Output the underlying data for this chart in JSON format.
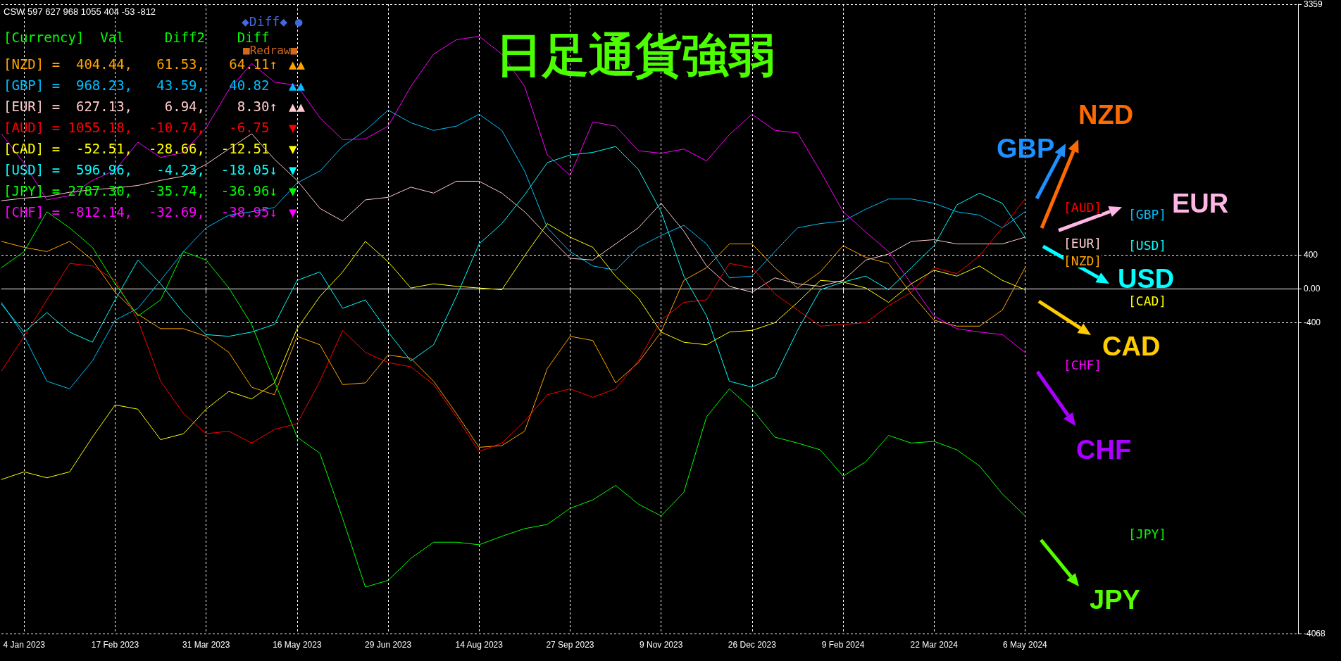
{
  "chart_data": {
    "type": "line",
    "title": "日足通貨強弱",
    "categories": [
      null,
      "4 Jan 2023",
      null,
      null,
      null,
      "17 Feb 2023",
      null,
      null,
      null,
      "31 Mar 2023",
      null,
      null,
      null,
      "16 May 2023",
      null,
      null,
      null,
      "29 Jun 2023",
      null,
      null,
      null,
      "14 Aug 2023",
      null,
      null,
      null,
      "27 Sep 2023",
      null,
      null,
      null,
      "9 Nov 2023",
      null,
      null,
      null,
      "26 Dec 2023",
      null,
      null,
      null,
      "9 Feb 2024",
      null,
      null,
      null,
      "22 Mar 2024",
      null,
      null,
      null,
      "6 May 2024",
      null,
      null,
      null,
      null,
      null,
      null,
      null,
      null,
      null,
      null,
      null,
      null
    ],
    "series": [
      {
        "color": "#ffa500",
        "values": [
          560,
          490,
          440,
          560,
          340,
          -40,
          -300,
          -470,
          -470,
          -560,
          -750,
          -1160,
          -1250,
          -560,
          -660,
          -1130,
          -1110,
          -780,
          -820,
          -1090,
          -1470,
          -1870,
          -1850,
          -1680,
          -940,
          -560,
          -610,
          -1110,
          -870,
          -510,
          100,
          250,
          530,
          530,
          250,
          10,
          200,
          510,
          370,
          300,
          -60,
          -370,
          -440,
          -440,
          -250,
          250,
          null,
          null,
          null,
          null,
          null,
          null,
          null,
          null,
          null,
          null,
          null,
          null
        ]
      },
      {
        "color": "#00bfff",
        "values": [
          -160,
          -560,
          -1090,
          -1180,
          -850,
          -370,
          -230,
          100,
          440,
          720,
          870,
          910,
          960,
          1250,
          1390,
          1680,
          1870,
          2110,
          1960,
          1870,
          1920,
          2060,
          1870,
          1390,
          720,
          440,
          270,
          220,
          490,
          630,
          750,
          530,
          130,
          150,
          440,
          720,
          770,
          800,
          940,
          1060,
          1060,
          1010,
          910,
          870,
          720,
          910,
          null,
          null,
          null,
          null,
          null,
          null,
          null,
          null,
          null,
          null,
          null,
          null
        ]
      },
      {
        "color": "#ffcccc",
        "values": [
          1040,
          1070,
          1090,
          1140,
          1170,
          1190,
          1220,
          1280,
          1330,
          1470,
          1650,
          1830,
          1530,
          1280,
          950,
          800,
          1050,
          1080,
          1200,
          1130,
          1270,
          1270,
          1130,
          910,
          630,
          360,
          340,
          530,
          720,
          1010,
          680,
          270,
          30,
          -40,
          130,
          60,
          30,
          100,
          340,
          410,
          560,
          580,
          530,
          530,
          530,
          610,
          null,
          null,
          null,
          null,
          null,
          null,
          null,
          null,
          null,
          null,
          null,
          null
        ]
      },
      {
        "color": "#ff0000",
        "values": [
          -970,
          -560,
          -130,
          300,
          270,
          100,
          -370,
          -1090,
          -1470,
          -1710,
          -1680,
          -1820,
          -1660,
          -1590,
          -1090,
          -490,
          -750,
          -870,
          -920,
          -1130,
          -1510,
          -1920,
          -1820,
          -1560,
          -1250,
          -1180,
          -1280,
          -1180,
          -850,
          -370,
          -160,
          -130,
          300,
          250,
          -60,
          -250,
          -440,
          -420,
          -400,
          -200,
          -40,
          250,
          180,
          390,
          720,
          1060,
          null,
          null,
          null,
          null,
          null,
          null,
          null,
          null,
          null,
          null,
          null,
          null
        ]
      },
      {
        "color": "#ffff00",
        "values": [
          -2250,
          -2160,
          -2230,
          -2160,
          -1750,
          -1370,
          -1420,
          -1780,
          -1710,
          -1420,
          -1210,
          -1300,
          -1110,
          -470,
          -90,
          200,
          560,
          320,
          10,
          60,
          30,
          10,
          -10,
          390,
          770,
          610,
          490,
          150,
          -110,
          -510,
          -630,
          -660,
          -510,
          -490,
          -400,
          -160,
          100,
          80,
          10,
          -160,
          60,
          220,
          150,
          270,
          100,
          -10,
          null,
          null,
          null,
          null,
          null,
          null,
          null,
          null,
          null,
          null,
          null,
          null
        ]
      },
      {
        "color": "#00ffff",
        "values": [
          -180,
          -510,
          -280,
          -510,
          -630,
          -130,
          340,
          60,
          -280,
          -540,
          -560,
          -510,
          -420,
          100,
          200,
          -230,
          -130,
          -510,
          -850,
          -660,
          -90,
          530,
          770,
          1110,
          1490,
          1580,
          1610,
          1680,
          1410,
          910,
          150,
          -320,
          -1090,
          -1160,
          -1040,
          -490,
          -10,
          80,
          150,
          -10,
          250,
          510,
          990,
          1130,
          1010,
          610,
          null,
          null,
          null,
          null,
          null,
          null,
          null,
          null,
          null,
          null,
          null,
          null
        ]
      },
      {
        "color": "#00ff00",
        "values": [
          250,
          440,
          910,
          720,
          490,
          60,
          -320,
          -130,
          440,
          340,
          10,
          -420,
          -1090,
          -1750,
          -1940,
          -2710,
          -3520,
          -3440,
          -3180,
          -2990,
          -2990,
          -3020,
          -2920,
          -2830,
          -2780,
          -2590,
          -2490,
          -2320,
          -2540,
          -2680,
          -2400,
          -1510,
          -1180,
          -1420,
          -1750,
          -1820,
          -1900,
          -2210,
          -2040,
          -1730,
          -1820,
          -1800,
          -1900,
          -2090,
          -2420,
          -2680,
          null,
          null,
          null,
          null,
          null,
          null,
          null,
          null,
          null,
          null,
          null,
          null
        ]
      },
      {
        "color": "#ff00ff",
        "values": [
          1830,
          1480,
          1050,
          1100,
          1280,
          1400,
          1730,
          1550,
          1610,
          1900,
          2350,
          2660,
          2440,
          2400,
          2020,
          1760,
          1770,
          1920,
          2390,
          2770,
          2940,
          2980,
          2770,
          2390,
          1580,
          1340,
          1970,
          1920,
          1630,
          1600,
          1650,
          1510,
          1820,
          2060,
          1870,
          1840,
          1390,
          910,
          670,
          440,
          60,
          -320,
          -470,
          -510,
          -540,
          -750,
          null,
          null,
          null,
          null,
          null,
          null,
          null,
          null,
          null,
          null,
          null,
          null
        ]
      }
    ],
    "ylim": [
      -4068,
      3359
    ],
    "yticks": [
      3359,
      400,
      {
        "value": 0,
        "label": "0.00"
      },
      -400,
      -4068
    ],
    "grid": true,
    "marker": "none",
    "line_style": "solid",
    "annotations": [
      "CSW 597 627 968 1055 404 -53 -812",
      "[Currency]  Val     Diff2    Diff",
      "[NZD] =  404.44,   61.53,   64.11↑",
      "[GBP] =  968.23,   43.59,   40.82",
      "[EUR] =  627.13,    6.94,    8.30↑",
      "[AUD] = 1055.18,  -10.74,   -6.75",
      "[CAD] =  -52.51,  -28.66,  -12.51",
      "[USD] =  596.96,   -4.23,  -18.05↓",
      "[JPY] = 2787.30,  -35.74,  -36.96↓",
      "[CHF] = -812.14,  -32.69,  -38.95↓",
      "▲▲",
      "▲▲",
      "▲▲",
      "▼",
      "▼",
      "▼",
      "▼",
      "▼",
      "◆Diff◆ ●",
      "■Redraw■",
      "[AUD]",
      "[EUR]",
      "[NZD]",
      "[GBP]",
      "[USD]",
      "[CAD]",
      "[CHF]",
      "[JPY]",
      "GBP",
      "NZD",
      "EUR",
      "USD",
      "CAD",
      "CHF",
      "JPY"
    ]
  }
}
